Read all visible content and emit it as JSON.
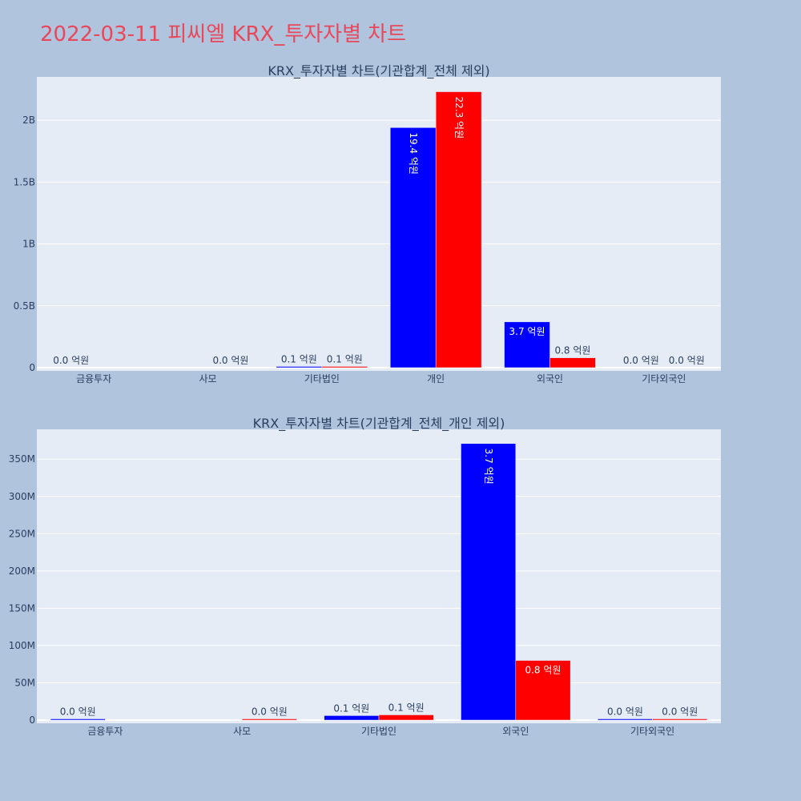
{
  "page": {
    "title": "2022-03-11 피씨엘 KRX_투자자별 차트"
  },
  "colors": {
    "background": "#b0c4de",
    "plot_background": "#e5ecf6",
    "title": "#e8485a",
    "series_a": "#0000ff",
    "series_b": "#ff0000"
  },
  "chart_data": [
    {
      "type": "bar",
      "title": "KRX_투자자별 차트(기관합계_전체 제외)",
      "categories": [
        "금융투자",
        "사모",
        "기타법인",
        "개인",
        "외국인",
        "기타외국인"
      ],
      "series": [
        {
          "color": "#0000ff",
          "values": [
            0,
            0,
            5000000,
            1940000000,
            370000000,
            0
          ],
          "labels": [
            "0.0 억원",
            "",
            "0.1 억원",
            "19.4 억원",
            "3.7 억원",
            "0.0 억원"
          ]
        },
        {
          "color": "#ff0000",
          "values": [
            0,
            0,
            8000000,
            2230000000,
            80000000,
            0
          ],
          "labels": [
            "",
            "0.0 억원",
            "0.1 억원",
            "22.3 억원",
            "0.8 억원",
            "0.0 억원"
          ]
        }
      ],
      "yticks": [
        0,
        500000000,
        1000000000,
        1500000000,
        2000000000
      ],
      "ytick_labels": [
        "0",
        "0.5B",
        "1B",
        "1.5B",
        "2B"
      ],
      "ylim": [
        0,
        2350000000
      ],
      "grid": true,
      "xlabel": "",
      "ylabel": ""
    },
    {
      "type": "bar",
      "title": "KRX_투자자별 차트(기관합계_전체_개인 제외)",
      "categories": [
        "금융투자",
        "사모",
        "기타법인",
        "외국인",
        "기타외국인"
      ],
      "series": [
        {
          "color": "#0000ff",
          "values": [
            1000000,
            0,
            6000000,
            371000000,
            500000
          ],
          "labels": [
            "0.0 억원",
            "",
            "0.1 억원",
            "3.7 억원",
            "0.0 억원"
          ]
        },
        {
          "color": "#ff0000",
          "values": [
            0,
            1500000,
            7000000,
            80000000,
            500000
          ],
          "labels": [
            "",
            "0.0 억원",
            "0.1 억원",
            "0.8 억원",
            "0.0 억원"
          ]
        }
      ],
      "yticks": [
        0,
        50000000,
        100000000,
        150000000,
        200000000,
        250000000,
        300000000,
        350000000
      ],
      "ytick_labels": [
        "0",
        "50M",
        "100M",
        "150M",
        "200M",
        "250M",
        "300M",
        "350M"
      ],
      "ylim": [
        0,
        390000000
      ],
      "grid": true,
      "xlabel": "",
      "ylabel": ""
    }
  ]
}
